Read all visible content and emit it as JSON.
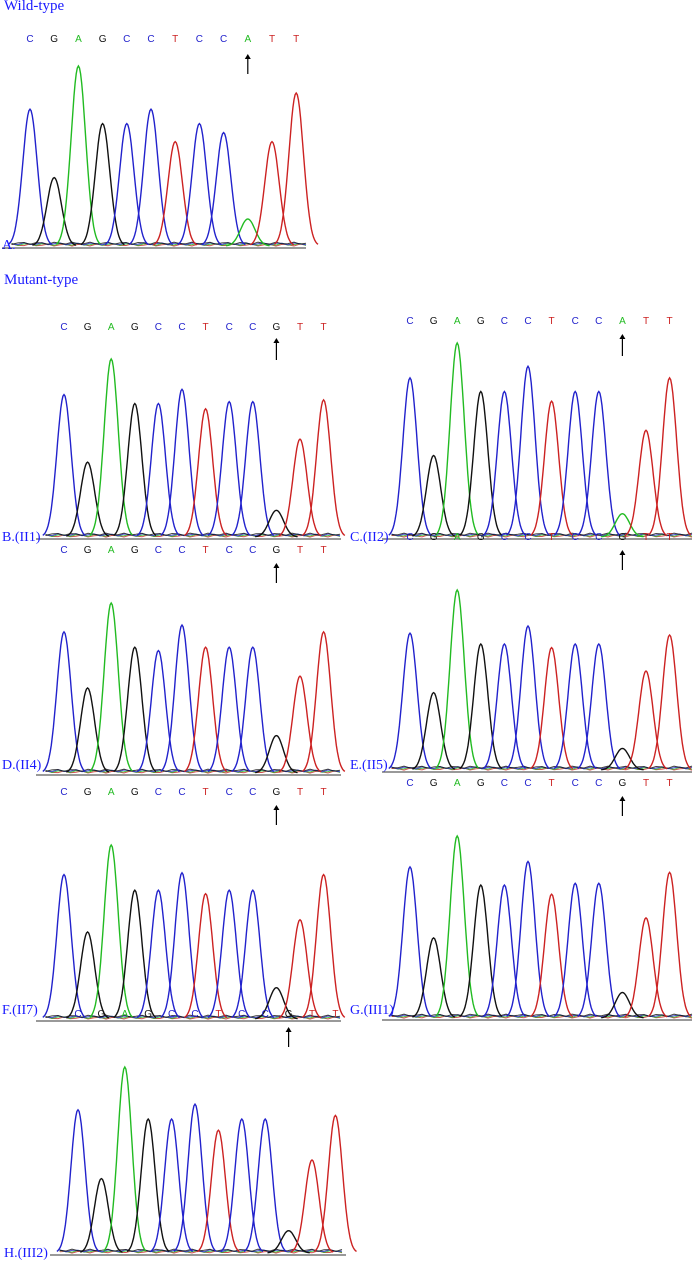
{
  "titles": {
    "wild_type": "Wild-type",
    "mutant_type": "Mutant-type"
  },
  "colors": {
    "A": "#22bb22",
    "C": "#2222cc",
    "G": "#111111",
    "T": "#cc2222",
    "label": "#1a1aff"
  },
  "panels": [
    {
      "id": "A",
      "label": "A.",
      "sequence": [
        "C",
        "G",
        "A",
        "G",
        "C",
        "C",
        "T",
        "C",
        "C",
        "A",
        "T",
        "T"
      ],
      "heights": [
        0.76,
        0.38,
        1.0,
        0.68,
        0.68,
        0.76,
        0.58,
        0.68,
        0.63,
        0.15,
        0.58,
        0.85
      ]
    },
    {
      "id": "B",
      "label": "B.(II1)",
      "sequence": [
        "C",
        "G",
        "A",
        "G",
        "C",
        "C",
        "T",
        "C",
        "C",
        "G",
        "T",
        "T"
      ],
      "heights": [
        0.8,
        0.42,
        1.0,
        0.75,
        0.75,
        0.83,
        0.72,
        0.76,
        0.76,
        0.15,
        0.55,
        0.77
      ]
    },
    {
      "id": "C",
      "label": "C.(II2)",
      "sequence": [
        "C",
        "G",
        "A",
        "G",
        "C",
        "C",
        "T",
        "C",
        "C",
        "A",
        "T",
        "T"
      ],
      "heights": [
        0.82,
        0.42,
        1.0,
        0.75,
        0.75,
        0.88,
        0.7,
        0.75,
        0.75,
        0.12,
        0.55,
        0.82
      ]
    },
    {
      "id": "D",
      "label": "D.(II4)",
      "sequence": [
        "C",
        "G",
        "A",
        "G",
        "C",
        "C",
        "T",
        "C",
        "C",
        "G",
        "T",
        "T"
      ],
      "heights": [
        0.83,
        0.5,
        1.0,
        0.74,
        0.72,
        0.87,
        0.74,
        0.74,
        0.74,
        0.22,
        0.57,
        0.83
      ]
    },
    {
      "id": "E",
      "label": "E.(II5)",
      "sequence": [
        "C",
        "G",
        "A",
        "G",
        "C",
        "C",
        "T",
        "C",
        "C",
        "G",
        "T",
        "T"
      ],
      "heights": [
        0.76,
        0.43,
        1.0,
        0.7,
        0.7,
        0.8,
        0.68,
        0.7,
        0.7,
        0.12,
        0.55,
        0.75
      ]
    },
    {
      "id": "F",
      "label": "F.(II7)",
      "sequence": [
        "C",
        "G",
        "A",
        "G",
        "C",
        "C",
        "T",
        "C",
        "C",
        "G",
        "T",
        "T"
      ],
      "heights": [
        0.83,
        0.5,
        1.0,
        0.74,
        0.74,
        0.84,
        0.72,
        0.74,
        0.74,
        0.18,
        0.57,
        0.83
      ]
    },
    {
      "id": "G",
      "label": "G.(III1)",
      "sequence": [
        "C",
        "G",
        "A",
        "G",
        "C",
        "C",
        "T",
        "C",
        "C",
        "G",
        "T",
        "T"
      ],
      "heights": [
        0.83,
        0.44,
        1.0,
        0.73,
        0.73,
        0.86,
        0.68,
        0.74,
        0.74,
        0.14,
        0.55,
        0.8
      ]
    },
    {
      "id": "H",
      "label": "H.(III2)",
      "sequence": [
        "C",
        "G",
        "A",
        "G",
        "C",
        "C",
        "T",
        "C",
        "C",
        "G",
        "T",
        "T"
      ],
      "heights": [
        0.77,
        0.4,
        1.0,
        0.72,
        0.72,
        0.8,
        0.66,
        0.72,
        0.72,
        0.12,
        0.5,
        0.74
      ]
    }
  ]
}
